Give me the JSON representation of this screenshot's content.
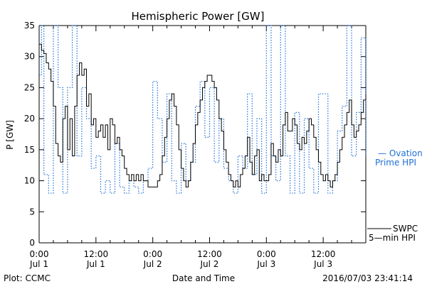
{
  "chart_data": {
    "type": "line",
    "title": "Hemispheric Power [GW]",
    "xlabel": "Date and Time",
    "ylabel": "P [GW]",
    "ylim": [
      0,
      35
    ],
    "xlim_hours": [
      0,
      69
    ],
    "y_ticks": [
      0,
      5,
      10,
      15,
      20,
      25,
      30,
      35
    ],
    "x_ticks": [
      {
        "hours": 0,
        "time": "0:00",
        "date": "Jul 1"
      },
      {
        "hours": 12,
        "time": "12:00",
        "date": "Jul 1"
      },
      {
        "hours": 24,
        "time": "0:00",
        "date": "Jul 2"
      },
      {
        "hours": 36,
        "time": "12:00",
        "date": "Jul 2"
      },
      {
        "hours": 48,
        "time": "0:00",
        "date": "Jul 3"
      },
      {
        "hours": 60,
        "time": "12:00",
        "date": "Jul 3"
      }
    ],
    "grid": false,
    "series": [
      {
        "name": "Ovation Prime HPI",
        "style": "dotted",
        "color": "#1f6fd6",
        "points": [
          [
            0,
            27
          ],
          [
            0.5,
            35
          ],
          [
            1,
            11
          ],
          [
            2,
            8
          ],
          [
            3,
            35
          ],
          [
            4,
            25
          ],
          [
            5,
            8
          ],
          [
            6,
            25
          ],
          [
            7,
            35
          ],
          [
            8,
            14
          ],
          [
            9,
            25
          ],
          [
            10,
            20
          ],
          [
            11,
            12
          ],
          [
            12,
            14
          ],
          [
            13,
            8
          ],
          [
            14,
            10
          ],
          [
            15,
            8
          ],
          [
            16,
            16
          ],
          [
            17,
            9
          ],
          [
            18,
            8
          ],
          [
            19,
            10
          ],
          [
            20,
            9
          ],
          [
            21,
            8
          ],
          [
            22,
            10
          ],
          [
            23,
            12
          ],
          [
            24,
            26
          ],
          [
            25,
            20
          ],
          [
            26,
            13
          ],
          [
            27,
            24
          ],
          [
            28,
            10
          ],
          [
            29,
            8
          ],
          [
            30,
            16
          ],
          [
            31,
            10
          ],
          [
            32,
            13
          ],
          [
            33,
            22
          ],
          [
            34,
            26
          ],
          [
            35,
            17
          ],
          [
            36,
            25
          ],
          [
            37,
            13
          ],
          [
            38,
            20
          ],
          [
            39,
            12
          ],
          [
            40,
            10
          ],
          [
            41,
            8
          ],
          [
            42,
            14
          ],
          [
            43,
            12
          ],
          [
            44,
            24
          ],
          [
            45,
            11
          ],
          [
            46,
            20
          ],
          [
            47,
            8
          ],
          [
            48,
            35
          ],
          [
            48.5,
            35
          ],
          [
            49,
            14
          ],
          [
            50,
            10
          ],
          [
            51,
            35
          ],
          [
            52,
            14
          ],
          [
            53,
            8
          ],
          [
            54,
            21
          ],
          [
            55,
            8
          ],
          [
            56,
            20
          ],
          [
            57,
            12
          ],
          [
            58,
            8
          ],
          [
            59,
            24
          ],
          [
            60,
            24
          ],
          [
            61,
            8
          ],
          [
            62,
            10
          ],
          [
            63,
            18
          ],
          [
            64,
            22
          ],
          [
            65,
            35
          ],
          [
            66,
            14
          ],
          [
            67,
            21
          ],
          [
            68,
            33
          ],
          [
            69,
            14
          ]
        ]
      },
      {
        "name": "SWPC 5-min HPI",
        "style": "solid",
        "color": "#000000",
        "points": [
          [
            0,
            32
          ],
          [
            0.5,
            31
          ],
          [
            1,
            30.5
          ],
          [
            1.5,
            29
          ],
          [
            2,
            28
          ],
          [
            2.5,
            26
          ],
          [
            3,
            22
          ],
          [
            3.5,
            16
          ],
          [
            4,
            14
          ],
          [
            4.5,
            13
          ],
          [
            5,
            20
          ],
          [
            5.5,
            22
          ],
          [
            6,
            15
          ],
          [
            6.5,
            20
          ],
          [
            7,
            14
          ],
          [
            7.5,
            22
          ],
          [
            8,
            27
          ],
          [
            8.5,
            29
          ],
          [
            9,
            27
          ],
          [
            9.5,
            28
          ],
          [
            10,
            22
          ],
          [
            10.5,
            24
          ],
          [
            11,
            19
          ],
          [
            11.5,
            20
          ],
          [
            12,
            17
          ],
          [
            12.5,
            18
          ],
          [
            13,
            19
          ],
          [
            13.5,
            17
          ],
          [
            14,
            19
          ],
          [
            14.5,
            15
          ],
          [
            15,
            20
          ],
          [
            15.5,
            19
          ],
          [
            16,
            16
          ],
          [
            16.5,
            17
          ],
          [
            17,
            15
          ],
          [
            17.5,
            14
          ],
          [
            18,
            12
          ],
          [
            18.5,
            11
          ],
          [
            19,
            10
          ],
          [
            19.5,
            11
          ],
          [
            20,
            10
          ],
          [
            20.5,
            11
          ],
          [
            21,
            10
          ],
          [
            21.5,
            11
          ],
          [
            22,
            10
          ],
          [
            22.5,
            10
          ],
          [
            23,
            9
          ],
          [
            23.5,
            9
          ],
          [
            24,
            9
          ],
          [
            24.5,
            9
          ],
          [
            25,
            10
          ],
          [
            25.5,
            11
          ],
          [
            26,
            14
          ],
          [
            26.5,
            17
          ],
          [
            27,
            20
          ],
          [
            27.5,
            23
          ],
          [
            28,
            24
          ],
          [
            28.5,
            22
          ],
          [
            29,
            19
          ],
          [
            29.5,
            15
          ],
          [
            30,
            12
          ],
          [
            30.5,
            10
          ],
          [
            31,
            9
          ],
          [
            31.5,
            10
          ],
          [
            32,
            13
          ],
          [
            32.5,
            16
          ],
          [
            33,
            19
          ],
          [
            33.5,
            21
          ],
          [
            34,
            23
          ],
          [
            34.5,
            25
          ],
          [
            35,
            26
          ],
          [
            35.5,
            27
          ],
          [
            36,
            27
          ],
          [
            36.5,
            26
          ],
          [
            37,
            25
          ],
          [
            37.5,
            23
          ],
          [
            38,
            20
          ],
          [
            38.5,
            18
          ],
          [
            39,
            15
          ],
          [
            39.5,
            13
          ],
          [
            40,
            11
          ],
          [
            40.5,
            10
          ],
          [
            41,
            9
          ],
          [
            41.5,
            10
          ],
          [
            42,
            9
          ],
          [
            42.5,
            11
          ],
          [
            43,
            12
          ],
          [
            43.5,
            14
          ],
          [
            44,
            17
          ],
          [
            44.5,
            13
          ],
          [
            45,
            11
          ],
          [
            45.5,
            14
          ],
          [
            46,
            15
          ],
          [
            46.5,
            10
          ],
          [
            47,
            11
          ],
          [
            47.5,
            10
          ],
          [
            48,
            10
          ],
          [
            48.5,
            11
          ],
          [
            49,
            16
          ],
          [
            49.5,
            14
          ],
          [
            50,
            13
          ],
          [
            50.5,
            15
          ],
          [
            51,
            14
          ],
          [
            51.5,
            19
          ],
          [
            52,
            21
          ],
          [
            52.5,
            18
          ],
          [
            53,
            18
          ],
          [
            53.5,
            20
          ],
          [
            54,
            19
          ],
          [
            54.5,
            16
          ],
          [
            55,
            15
          ],
          [
            55.5,
            17
          ],
          [
            56,
            16
          ],
          [
            56.5,
            18
          ],
          [
            57,
            20
          ],
          [
            57.5,
            19
          ],
          [
            58,
            17
          ],
          [
            58.5,
            15
          ],
          [
            59,
            13
          ],
          [
            59.5,
            11
          ],
          [
            60,
            10
          ],
          [
            60.5,
            11
          ],
          [
            61,
            10
          ],
          [
            61.5,
            9
          ],
          [
            62,
            10
          ],
          [
            62.5,
            11
          ],
          [
            63,
            13
          ],
          [
            63.5,
            15
          ],
          [
            64,
            17
          ],
          [
            64.5,
            19
          ],
          [
            65,
            21
          ],
          [
            65.5,
            23
          ],
          [
            66,
            19
          ],
          [
            66.5,
            17
          ],
          [
            67,
            18
          ],
          [
            67.5,
            19
          ],
          [
            68,
            21
          ],
          [
            68.5,
            23
          ],
          [
            69,
            24
          ]
        ]
      }
    ],
    "legend": {
      "placement": "right",
      "ovation_line1": "— Ovation",
      "ovation_line2": "Prime HPI",
      "swpc_line1": "SWPC",
      "swpc_line2": "5—min HPI"
    }
  },
  "footer": {
    "plot_credit": "Plot: CCMC",
    "timestamp": "2016/07/03 23:41:14"
  }
}
